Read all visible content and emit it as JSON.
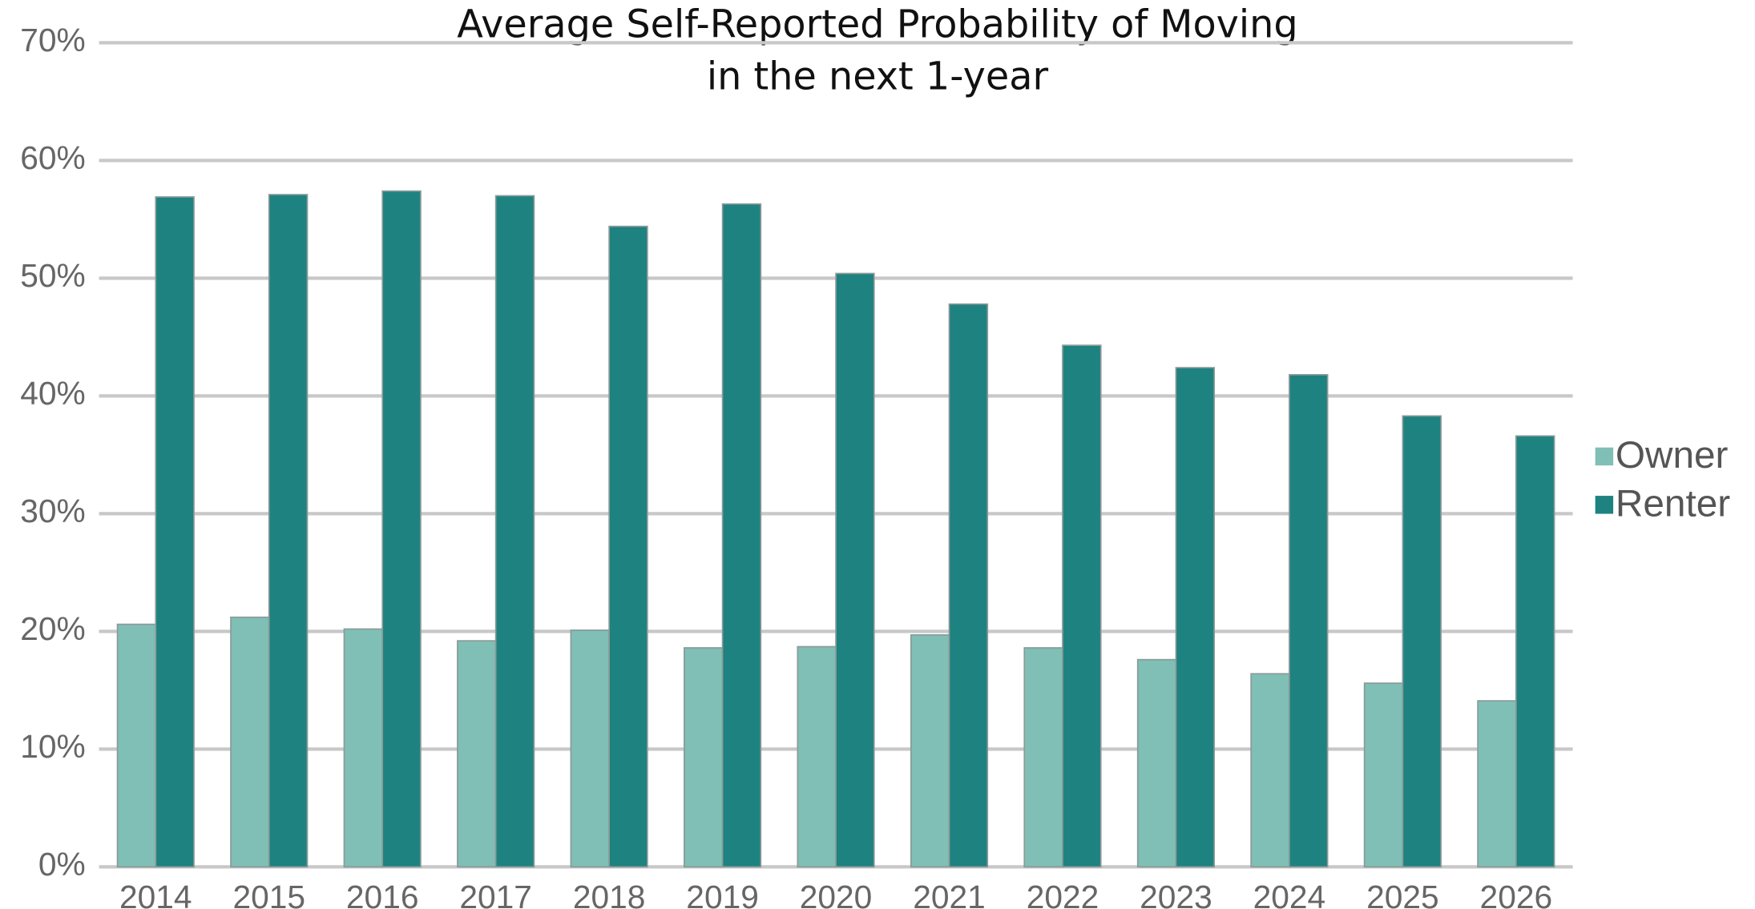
{
  "chart_data": {
    "type": "bar",
    "title": [
      "Average Self-Reported Probability of Moving",
      "in the next 1-year"
    ],
    "categories": [
      "2014",
      "2015",
      "2016",
      "2017",
      "2018",
      "2019",
      "2020",
      "2021",
      "2022",
      "2023",
      "2024",
      "2025",
      "2026"
    ],
    "series": [
      {
        "name": "Owner",
        "color": "#7fbfb5",
        "values": [
          20.6,
          21.2,
          20.2,
          19.2,
          20.1,
          18.6,
          18.7,
          19.7,
          18.6,
          17.6,
          16.4,
          15.6,
          14.1
        ]
      },
      {
        "name": "Renter",
        "color": "#1e8280",
        "values": [
          56.9,
          57.1,
          57.4,
          57.0,
          54.4,
          56.3,
          50.4,
          47.8,
          44.3,
          42.4,
          41.8,
          38.3,
          36.6
        ]
      }
    ],
    "ylim": [
      0,
      70
    ],
    "yticks": [
      {
        "value": 0,
        "label": "0%"
      },
      {
        "value": 10,
        "label": "10%"
      },
      {
        "value": 20,
        "label": "20%"
      },
      {
        "value": 30,
        "label": "30%"
      },
      {
        "value": 40,
        "label": "40%"
      },
      {
        "value": 50,
        "label": "50%"
      },
      {
        "value": 60,
        "label": "60%"
      },
      {
        "value": 70,
        "label": "70%"
      }
    ],
    "grid": true,
    "legend": "right"
  }
}
